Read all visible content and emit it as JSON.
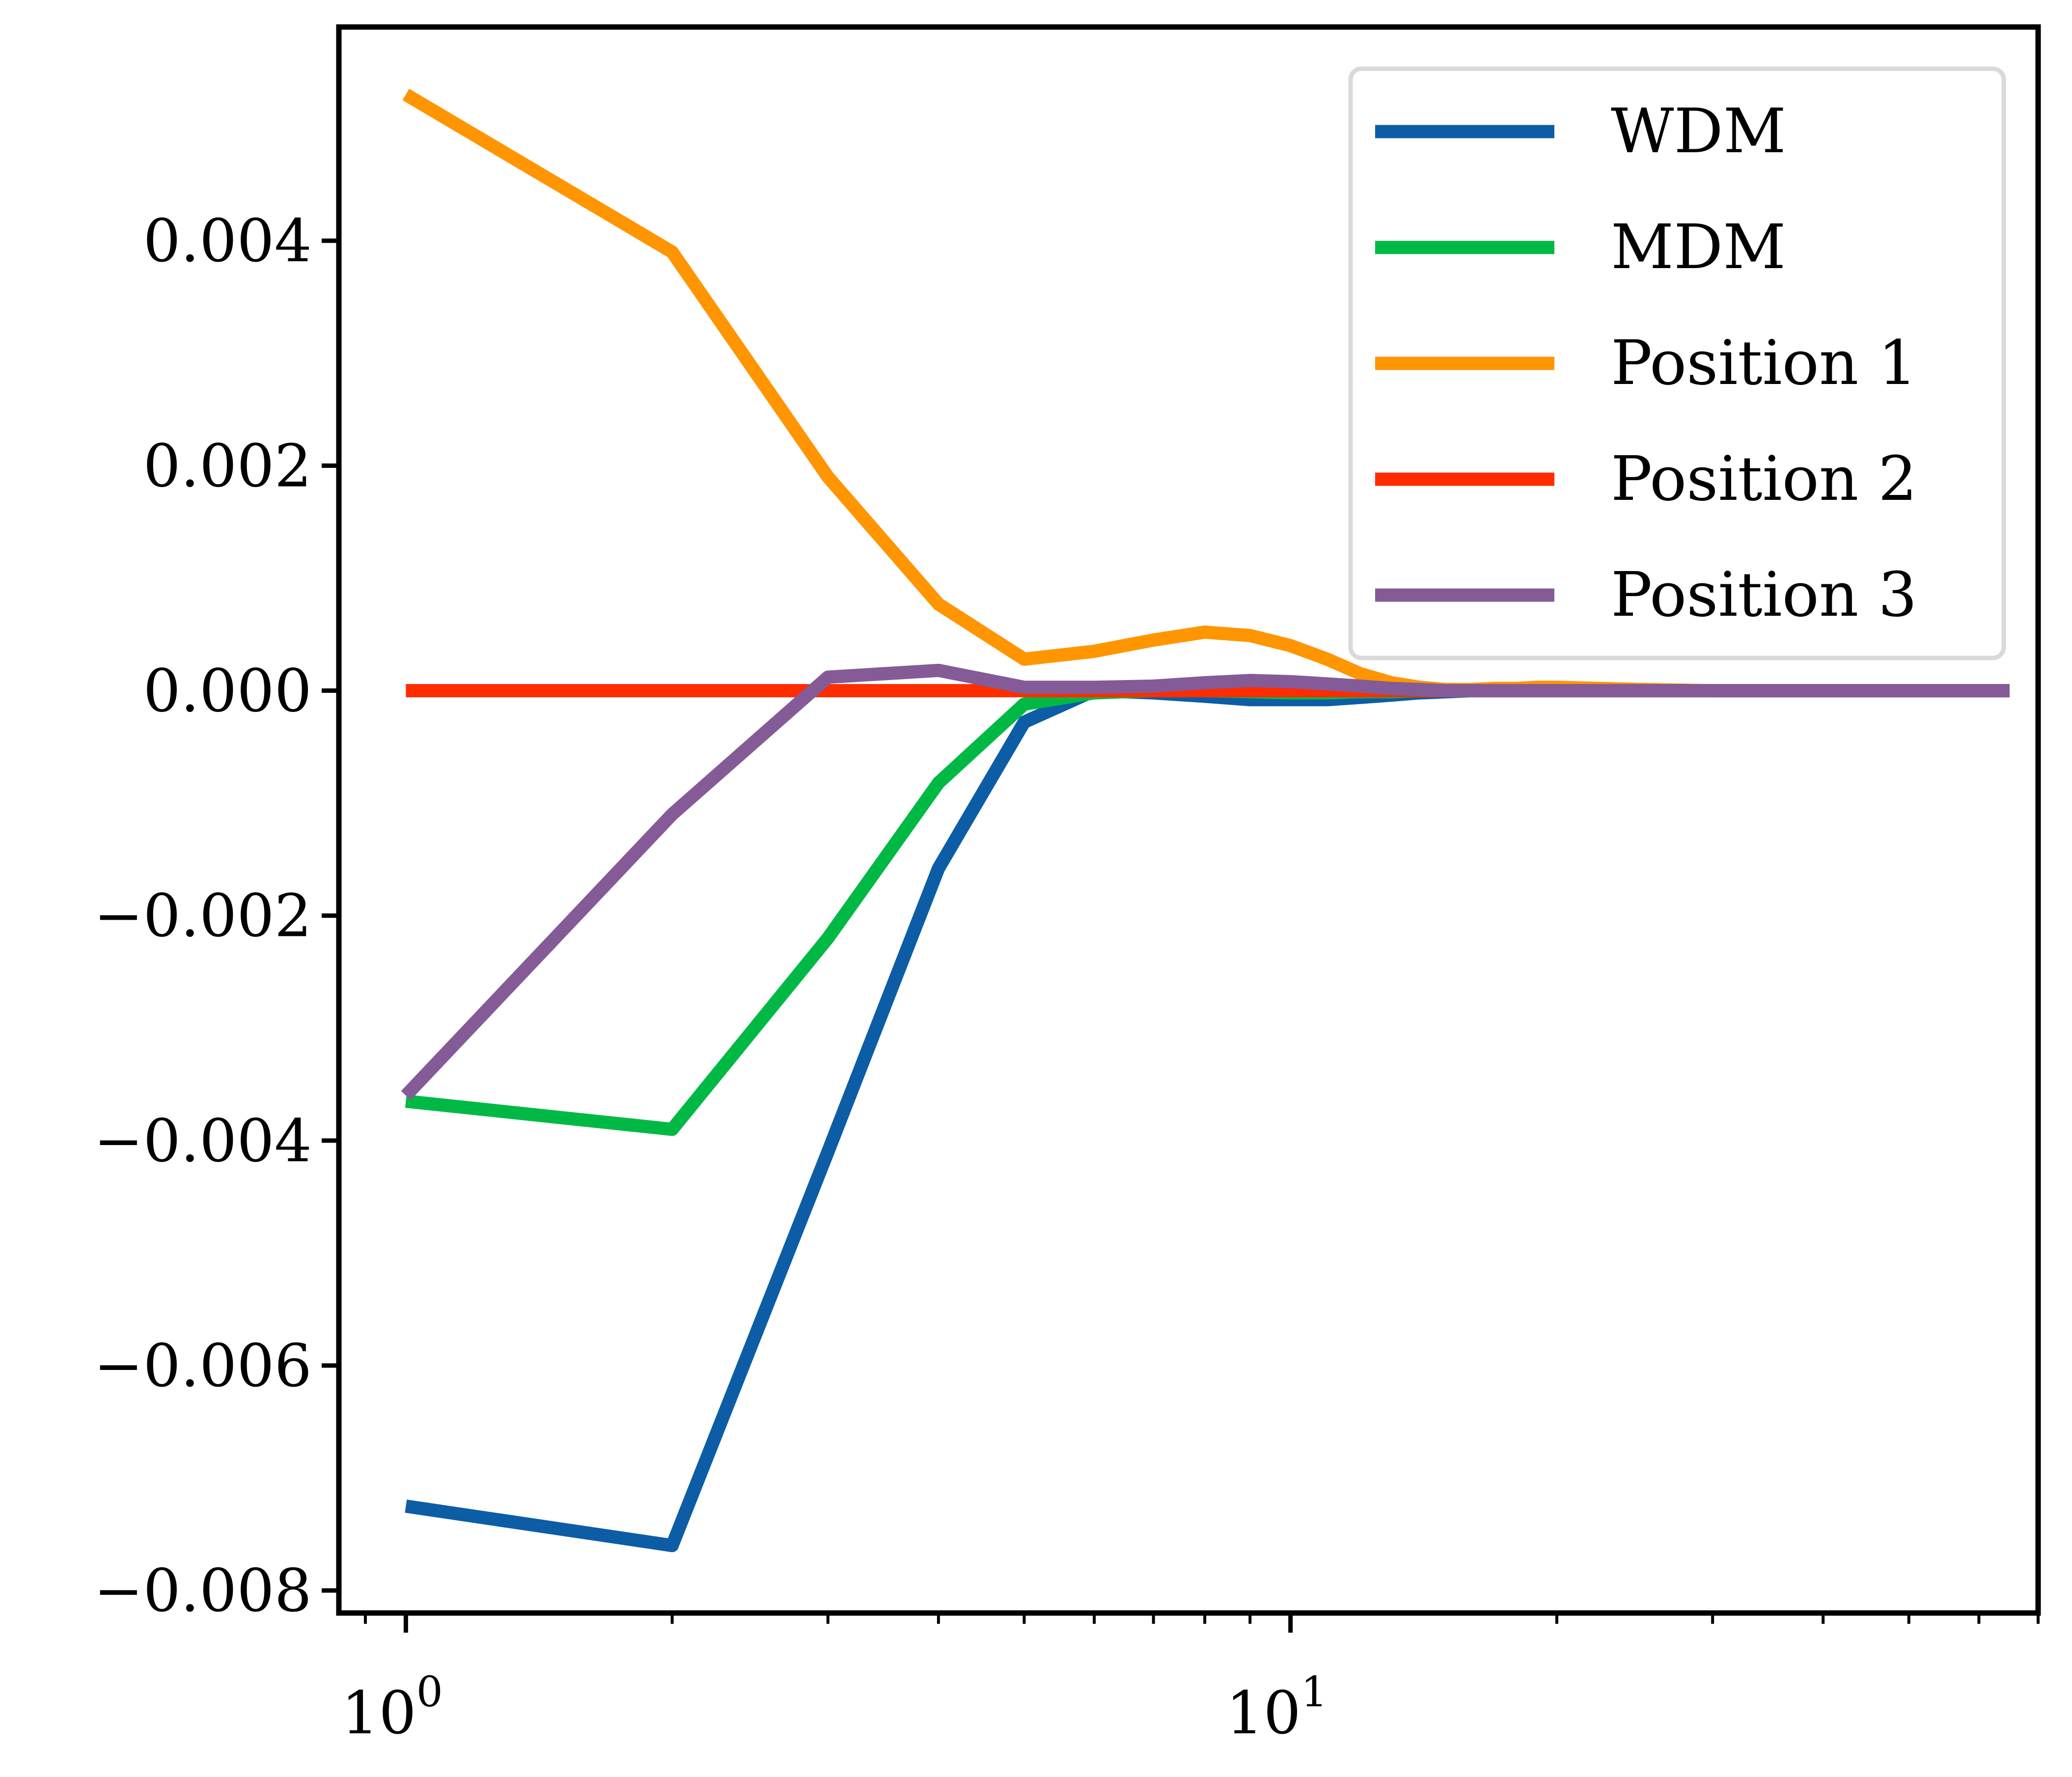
{
  "chart_data": {
    "type": "line",
    "title": "",
    "xlabel": "",
    "ylabel": "",
    "xscale": "log",
    "xlim": [
      0.84,
      70
    ],
    "ylim": [
      -0.0082,
      0.0059
    ],
    "grid": false,
    "legend_position": "top-right",
    "x_ticks": [
      {
        "value": 1,
        "base": "10",
        "exp": "0"
      },
      {
        "value": 10,
        "base": "10",
        "exp": "1"
      }
    ],
    "y_ticks": [
      {
        "value": 0.004,
        "label": "0.004"
      },
      {
        "value": 0.002,
        "label": "0.002"
      },
      {
        "value": 0.0,
        "label": "0.000"
      },
      {
        "value": -0.002,
        "label": "−0.002"
      },
      {
        "value": -0.004,
        "label": "−0.004"
      },
      {
        "value": -0.006,
        "label": "−0.006"
      },
      {
        "value": -0.008,
        "label": "−0.008"
      }
    ],
    "x": [
      1,
      2,
      3,
      4,
      5,
      6,
      7,
      8,
      9,
      10,
      11,
      12,
      13,
      14,
      15,
      16,
      17,
      18,
      19,
      20,
      25,
      30,
      35,
      40,
      45,
      50,
      55,
      60,
      65
    ],
    "series": [
      {
        "name": "WDM",
        "color": "#0c5da5",
        "values": [
          -0.00725,
          -0.0076,
          -0.0041,
          -0.00158,
          -0.00028,
          0.0,
          -2e-05,
          -5e-05,
          -8e-05,
          -8e-05,
          -8e-05,
          -6e-05,
          -4e-05,
          -2e-05,
          -1e-05,
          0,
          0,
          0,
          0,
          0,
          0,
          0,
          0,
          0,
          0,
          0,
          0,
          0,
          0
        ]
      },
      {
        "name": "MDM",
        "color": "#00b945",
        "values": [
          -0.00365,
          -0.0039,
          -0.0022,
          -0.00082,
          -0.00012,
          -2e-05,
          0.0,
          0.0,
          -1e-05,
          -2e-05,
          -2e-05,
          -1e-05,
          -1e-05,
          0,
          0,
          0,
          0,
          0,
          0,
          0,
          0,
          0,
          0,
          0,
          0,
          0,
          0,
          0,
          0
        ]
      },
      {
        "name": "Position 1",
        "color": "#ff9500",
        "values": [
          0.0053,
          0.0039,
          0.0019,
          0.00077,
          0.00028,
          0.00035,
          0.00045,
          0.00052,
          0.00049,
          0.0004,
          0.00028,
          0.00015,
          7e-05,
          3e-05,
          1e-05,
          1e-05,
          2e-05,
          2e-05,
          3e-05,
          3e-05,
          1e-05,
          0,
          0,
          0,
          0,
          0,
          0,
          0,
          0
        ]
      },
      {
        "name": "Position 2",
        "color": "#ff2c00",
        "values": [
          0,
          0,
          0,
          0,
          0,
          0,
          0,
          0,
          0,
          0,
          0,
          0,
          0,
          0,
          0,
          0,
          0,
          0,
          0,
          0,
          0,
          0,
          0,
          0,
          0,
          0,
          0,
          0,
          0
        ]
      },
      {
        "name": "Position 3",
        "color": "#845b97",
        "values": [
          -0.0036,
          -0.0011,
          0.00012,
          0.00018,
          3e-05,
          3e-05,
          4e-05,
          7e-05,
          9e-05,
          8e-05,
          6e-05,
          4e-05,
          2e-05,
          1e-05,
          0,
          0,
          0,
          0,
          0,
          0,
          0,
          0,
          0,
          0,
          0,
          0,
          0,
          0,
          0
        ]
      }
    ]
  }
}
